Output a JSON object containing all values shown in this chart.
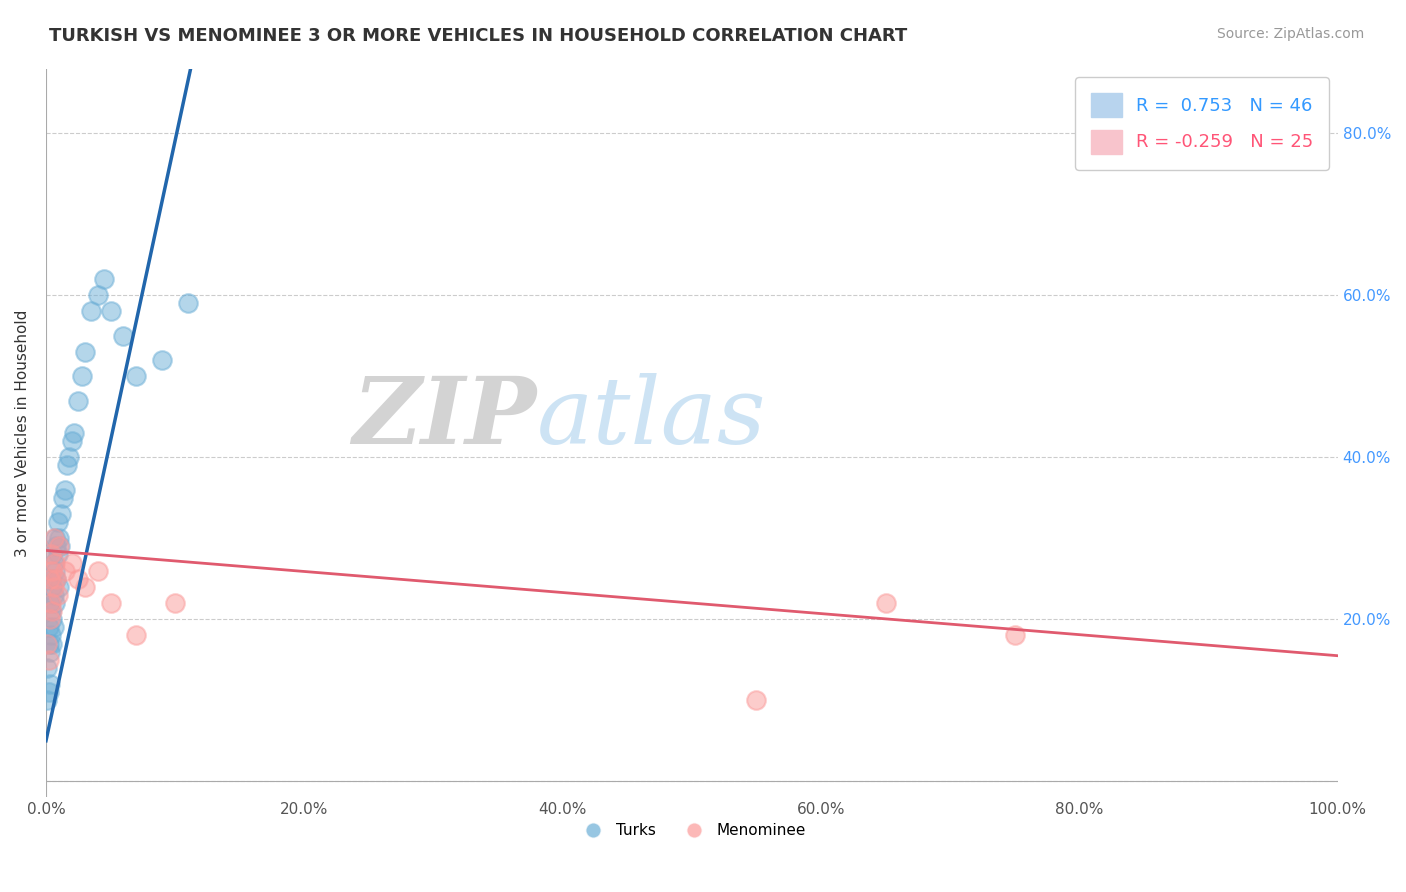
{
  "title": "TURKISH VS MENOMINEE 3 OR MORE VEHICLES IN HOUSEHOLD CORRELATION CHART",
  "source_text": "Source: ZipAtlas.com",
  "ylabel": "3 or more Vehicles in Household",
  "xlim": [
    0,
    1.0
  ],
  "ylim": [
    -0.02,
    0.88
  ],
  "blue_color": "#6baed6",
  "pink_color": "#fb9a99",
  "blue_line_color": "#2166ac",
  "pink_line_color": "#e05a6e",
  "legend_r_blue": "0.753",
  "legend_n_blue": "46",
  "legend_r_pink": "-0.259",
  "legend_n_pink": "25",
  "blue_label": "Turks",
  "pink_label": "Menominee",
  "watermark_zip": "ZIP",
  "watermark_atlas": "atlas",
  "title_fontsize": 13,
  "background_color": "#ffffff",
  "grid_color": "#cccccc",
  "blue_line_x0": 0.0,
  "blue_line_y0": 0.05,
  "blue_line_x1": 0.112,
  "blue_line_y1": 0.88,
  "pink_line_x0": 0.0,
  "pink_line_y0": 0.285,
  "pink_line_x1": 1.0,
  "pink_line_y1": 0.155,
  "blue_scatter_x": [
    0.001,
    0.001,
    0.002,
    0.002,
    0.002,
    0.003,
    0.003,
    0.003,
    0.004,
    0.004,
    0.004,
    0.005,
    0.005,
    0.005,
    0.005,
    0.006,
    0.006,
    0.006,
    0.007,
    0.007,
    0.007,
    0.008,
    0.008,
    0.009,
    0.009,
    0.01,
    0.01,
    0.011,
    0.012,
    0.013,
    0.015,
    0.016,
    0.018,
    0.02,
    0.022,
    0.025,
    0.028,
    0.03,
    0.035,
    0.04,
    0.045,
    0.05,
    0.06,
    0.07,
    0.09,
    0.11
  ],
  "blue_scatter_y": [
    0.1,
    0.14,
    0.11,
    0.17,
    0.19,
    0.12,
    0.16,
    0.22,
    0.18,
    0.21,
    0.25,
    0.17,
    0.2,
    0.24,
    0.28,
    0.19,
    0.23,
    0.27,
    0.22,
    0.26,
    0.3,
    0.25,
    0.29,
    0.28,
    0.32,
    0.24,
    0.3,
    0.29,
    0.33,
    0.35,
    0.36,
    0.39,
    0.4,
    0.42,
    0.43,
    0.47,
    0.5,
    0.53,
    0.58,
    0.6,
    0.62,
    0.58,
    0.55,
    0.5,
    0.52,
    0.59
  ],
  "pink_scatter_x": [
    0.001,
    0.002,
    0.003,
    0.003,
    0.004,
    0.004,
    0.005,
    0.005,
    0.006,
    0.006,
    0.007,
    0.008,
    0.009,
    0.01,
    0.015,
    0.02,
    0.025,
    0.03,
    0.04,
    0.05,
    0.07,
    0.1,
    0.55,
    0.65,
    0.75
  ],
  "pink_scatter_y": [
    0.17,
    0.15,
    0.2,
    0.25,
    0.22,
    0.28,
    0.21,
    0.26,
    0.24,
    0.3,
    0.27,
    0.25,
    0.23,
    0.29,
    0.26,
    0.27,
    0.25,
    0.24,
    0.26,
    0.22,
    0.18,
    0.22,
    0.1,
    0.22,
    0.18
  ]
}
